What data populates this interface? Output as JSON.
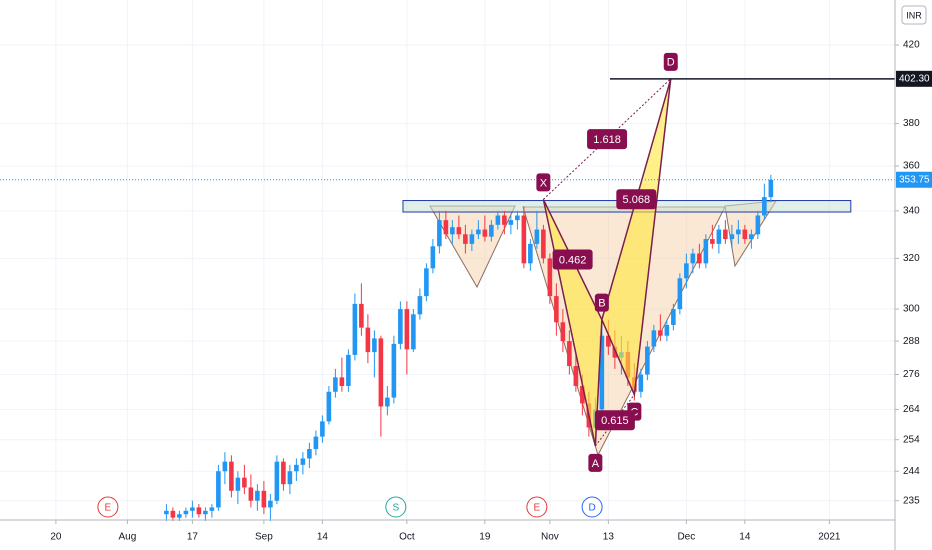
{
  "chart_data": {
    "type": "candlestick",
    "currency": "INR",
    "log_scale": true,
    "grid": true,
    "up_color": "#2196f3",
    "down_color": "#f23645",
    "xlim": [
      -62.6,
      75.1
    ],
    "ylim": [
      229.3,
      444.8
    ],
    "yticks": [
      235,
      244,
      254,
      264,
      276,
      288,
      300,
      320,
      340,
      360,
      380,
      420
    ],
    "xticks": [
      {
        "value": -54,
        "label": "20"
      },
      {
        "value": -43,
        "label": "Aug"
      },
      {
        "value": -33,
        "label": "17"
      },
      {
        "value": -22,
        "label": "Sep"
      },
      {
        "value": -13,
        "label": "14"
      },
      {
        "value": 0,
        "label": "Oct"
      },
      {
        "value": 12,
        "label": "19"
      },
      {
        "value": 22,
        "label": "Nov"
      },
      {
        "value": 31,
        "label": "13"
      },
      {
        "value": 43,
        "label": "Dec"
      },
      {
        "value": 52,
        "label": "14"
      },
      {
        "value": 65,
        "label": "2021"
      }
    ],
    "series": {
      "x": [
        -37,
        -36,
        -35,
        -34,
        -33,
        -32,
        -31,
        -30,
        -29,
        -28,
        -27,
        -26,
        -25,
        -24,
        -23,
        -22,
        -21,
        -20,
        -19,
        -18,
        -17,
        -16,
        -15,
        -14,
        -13,
        -12,
        -11,
        -10,
        -9,
        -8,
        -7,
        -6,
        -5,
        -4,
        -3,
        -2,
        -1,
        0,
        1,
        2,
        3,
        4,
        5,
        6,
        7,
        8,
        9,
        10,
        11,
        12,
        13,
        14,
        15,
        16,
        17,
        18,
        19,
        20,
        21,
        22,
        23,
        24,
        25,
        26,
        27,
        28,
        29,
        30,
        31,
        32,
        33,
        34,
        35,
        36,
        37,
        38,
        39,
        40,
        41,
        42,
        43,
        44,
        45,
        46,
        47,
        48,
        49,
        50,
        51,
        52,
        53,
        54,
        55,
        56
      ],
      "open": [
        231,
        232,
        230,
        231,
        232,
        233,
        231,
        232,
        233,
        244,
        247,
        238,
        242,
        239,
        235,
        238,
        233,
        235,
        247,
        240,
        244,
        246,
        248,
        251,
        255,
        260,
        270,
        275,
        272,
        283,
        302,
        293,
        284,
        289,
        265,
        268,
        287,
        300,
        285,
        298,
        305,
        316,
        325,
        336,
        330,
        333,
        330,
        326,
        330,
        332,
        329,
        334,
        338,
        334,
        336,
        338,
        318,
        326,
        332,
        320,
        305,
        295,
        288,
        279,
        272,
        266,
        258,
        264,
        290,
        286,
        282,
        284,
        275,
        270,
        276,
        286,
        292,
        290,
        294,
        300,
        312,
        318,
        322,
        318,
        328,
        326,
        332,
        328,
        330,
        332,
        328,
        330,
        338,
        346
      ],
      "high": [
        234,
        233,
        232,
        233,
        235,
        234,
        233,
        234,
        246,
        250,
        249,
        244,
        246,
        243,
        240,
        241,
        237,
        249,
        248,
        246,
        248,
        250,
        253,
        257,
        262,
        272,
        278,
        282,
        285,
        306,
        310,
        298,
        292,
        290,
        272,
        290,
        303,
        303,
        300,
        308,
        318,
        328,
        340,
        340,
        336,
        338,
        334,
        332,
        336,
        338,
        336,
        340,
        340,
        338,
        340,
        342,
        328,
        340,
        334,
        322,
        310,
        300,
        292,
        284,
        276,
        270,
        268,
        295,
        296,
        292,
        290,
        288,
        280,
        278,
        288,
        294,
        298,
        296,
        302,
        314,
        322,
        324,
        326,
        330,
        334,
        334,
        336,
        334,
        336,
        334,
        332,
        340,
        352,
        356
      ],
      "low": [
        229,
        229,
        229,
        230,
        230,
        230,
        229,
        230,
        232,
        240,
        236,
        234,
        237,
        233,
        232,
        231,
        229,
        234,
        238,
        237,
        241,
        243,
        245,
        249,
        253,
        259,
        268,
        270,
        270,
        281,
        290,
        280,
        275,
        255,
        262,
        266,
        285,
        276,
        284,
        296,
        303,
        314,
        322,
        328,
        326,
        328,
        322,
        323,
        328,
        327,
        327,
        332,
        330,
        330,
        332,
        316,
        315,
        324,
        318,
        302,
        290,
        284,
        276,
        270,
        262,
        255,
        253,
        262,
        283,
        278,
        276,
        272,
        267,
        268,
        274,
        284,
        288,
        288,
        292,
        298,
        308,
        314,
        316,
        316,
        324,
        322,
        326,
        324,
        326,
        326,
        324,
        328,
        336,
        344
      ],
      "close": [
        232,
        230,
        231,
        232,
        233,
        231,
        232,
        233,
        244,
        247,
        238,
        242,
        239,
        235,
        238,
        233,
        235,
        247,
        240,
        244,
        246,
        248,
        251,
        255,
        260,
        270,
        275,
        272,
        283,
        302,
        293,
        284,
        289,
        265,
        268,
        287,
        300,
        285,
        298,
        305,
        316,
        325,
        336,
        330,
        333,
        330,
        326,
        330,
        332,
        329,
        334,
        338,
        334,
        336,
        338,
        318,
        326,
        332,
        320,
        305,
        295,
        288,
        279,
        272,
        266,
        258,
        264,
        290,
        286,
        282,
        284,
        275,
        270,
        276,
        286,
        292,
        290,
        294,
        300,
        312,
        318,
        322,
        318,
        328,
        326,
        332,
        328,
        330,
        332,
        328,
        330,
        338,
        346,
        353.75
      ]
    },
    "zone": {
      "x": [
        -0.6,
        68.3
      ],
      "y": [
        339.5,
        344.5
      ]
    },
    "pattern": {
      "points": [
        {
          "label": "X",
          "x": 21,
          "y": 345
        },
        {
          "label": "A",
          "x": 29,
          "y": 252
        },
        {
          "label": "B",
          "x": 30,
          "y": 296
        },
        {
          "label": "C",
          "x": 35,
          "y": 269
        },
        {
          "label": "D",
          "x": 40.6,
          "y": 402.3
        }
      ],
      "ratios": [
        {
          "label": 1.618,
          "from": 0,
          "to": 4
        },
        {
          "label": 0.462,
          "from": 0,
          "to": 2
        },
        {
          "label": 5.068,
          "from": 2,
          "to": 4
        },
        {
          "label": 0.615,
          "from": 1,
          "to": 3
        }
      ]
    },
    "d_level": {
      "value": 402.3,
      "label": "402.30"
    },
    "last_price": {
      "value": 353.75,
      "label": "353.75"
    },
    "events": [
      {
        "label": "E",
        "x": -46,
        "color": "#e53935"
      },
      {
        "label": "S",
        "x": -1.7,
        "color": "#26a69a"
      },
      {
        "label": "E",
        "x": 20,
        "color": "#e53935"
      },
      {
        "label": "D",
        "x": 28.5,
        "color": "#2962ff"
      }
    ]
  }
}
